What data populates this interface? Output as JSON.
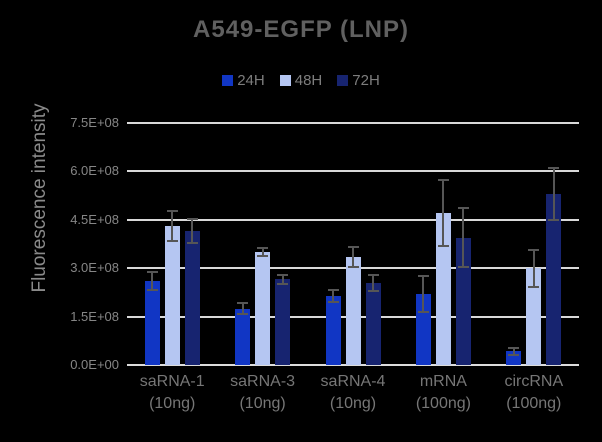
{
  "chart_data": {
    "type": "bar",
    "title": "A549-EGFP (LNP)",
    "ylabel": "Fluorescence intensity",
    "xlabel": "",
    "ylim": [
      0,
      750000000.0
    ],
    "ytick_labels": [
      "0.0E+00",
      "1.5E+08",
      "3.0E+08",
      "4.5E+08",
      "6.0E+08",
      "7.5E+08"
    ],
    "grid": true,
    "legend_position": "top-center",
    "background_color": "#000000",
    "gridline_color": "#d9d9d9",
    "error_bar_color": "#565656",
    "categories": [
      "saRNA-1\n(10ng)",
      "saRNA-3\n(10ng)",
      "saRNA-4\n(10ng)",
      "mRNA\n(100ng)",
      "circRNA\n(100ng)"
    ],
    "series": [
      {
        "name": "24H",
        "color": "#1136c4",
        "values": [
          260000000.0,
          175000000.0,
          215000000.0,
          220000000.0,
          42000000.0
        ],
        "errors": [
          30000000.0,
          20000000.0,
          22000000.0,
          58000000.0,
          15000000.0
        ]
      },
      {
        "name": "48H",
        "color": "#b5c6f2",
        "values": [
          430000000.0,
          350000000.0,
          335000000.0,
          470000000.0,
          300000000.0
        ],
        "errors": [
          50000000.0,
          15000000.0,
          35000000.0,
          105000000.0,
          60000000.0
        ]
      },
      {
        "name": "72H",
        "color": "#172470",
        "values": [
          415000000.0,
          265000000.0,
          255000000.0,
          395000000.0,
          530000000.0
        ],
        "errors": [
          40000000.0,
          18000000.0,
          28000000.0,
          95000000.0,
          85000000.0
        ]
      }
    ]
  }
}
